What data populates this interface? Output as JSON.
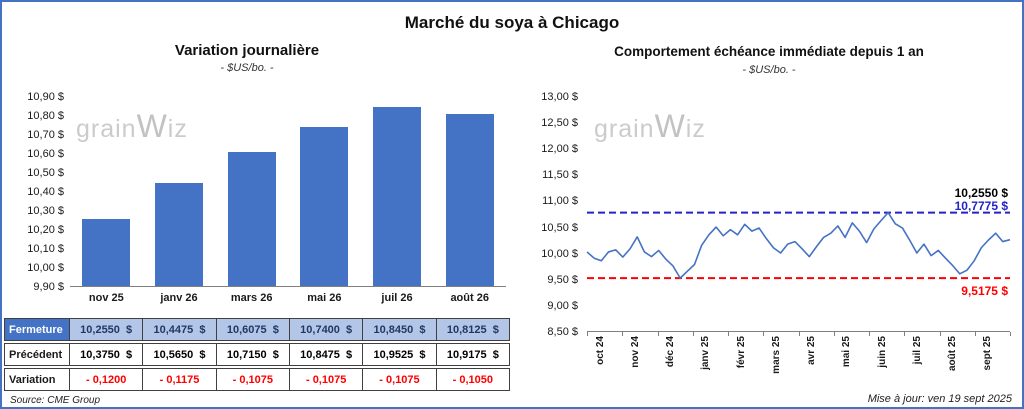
{
  "page": {
    "title": "Marché du soya à Chicago",
    "source": "Source: CME Group",
    "updated": "Mise à jour: ven 19 sept 2025",
    "watermark_pre": "grain",
    "watermark_mid": "W",
    "watermark_post": "iz",
    "accent_color": "#4472C4"
  },
  "chart_data": [
    {
      "type": "bar",
      "title": "Variation journalière",
      "subtitle": "- $US/bo. -",
      "categories": [
        "nov 25",
        "janv 26",
        "mars 26",
        "mai 26",
        "juil 26",
        "août 26"
      ],
      "values": [
        10.255,
        10.4475,
        10.6075,
        10.74,
        10.845,
        10.8125
      ],
      "ylim": [
        9.9,
        10.9
      ],
      "y_tick_labels": [
        "10,90 $",
        "10,80 $",
        "10,70 $",
        "10,60 $",
        "10,50 $",
        "10,40 $",
        "10,30 $",
        "10,20 $",
        "10,10 $",
        "10,00 $",
        "9,90 $"
      ],
      "bar_color": "#4472C4",
      "grid": false
    },
    {
      "type": "line",
      "title": "Comportement échéance immédiate depuis 1 an",
      "subtitle": "- $US/bo. -",
      "x_tick_labels": [
        "oct 24",
        "nov 24",
        "déc 24",
        "janv 25",
        "févr 25",
        "mars 25",
        "avr 25",
        "mai 25",
        "juin 25",
        "juil 25",
        "août 25",
        "sept 25"
      ],
      "ylim": [
        8.5,
        13.0
      ],
      "y_tick_labels": [
        "13,00 $",
        "12,50 $",
        "12,00 $",
        "11,50 $",
        "11,00 $",
        "10,50 $",
        "10,00 $",
        "9,50 $",
        "9,00 $",
        "8,50 $"
      ],
      "values": [
        10.02,
        9.9,
        9.85,
        10.02,
        10.06,
        9.92,
        10.08,
        10.31,
        10.02,
        9.93,
        10.05,
        9.88,
        9.75,
        9.5175,
        9.65,
        9.78,
        10.15,
        10.35,
        10.5,
        10.33,
        10.45,
        10.35,
        10.55,
        10.42,
        10.48,
        10.28,
        10.1,
        10.0,
        10.17,
        10.22,
        10.08,
        9.93,
        10.12,
        10.3,
        10.38,
        10.52,
        10.3,
        10.58,
        10.42,
        10.2,
        10.46,
        10.62,
        10.7775,
        10.56,
        10.48,
        10.25,
        10.0,
        10.17,
        9.95,
        10.05,
        9.9,
        9.76,
        9.6,
        9.67,
        9.85,
        10.1,
        10.25,
        10.38,
        10.22,
        10.255
      ],
      "line_color": "#4472C4",
      "grid": false,
      "annotations": {
        "last": {
          "label": "10,2550 $",
          "value": 10.255,
          "color": "#000000"
        },
        "high": {
          "label": "10,7775 $",
          "value": 10.7775,
          "color": "#2323C8",
          "style": "dashed"
        },
        "low": {
          "label": "9,5175 $",
          "value": 9.5175,
          "color": "#FF0000",
          "style": "dashed"
        }
      }
    }
  ],
  "table": {
    "rows": [
      {
        "label": "Fermeture",
        "style": "fermeture",
        "values": [
          "10,2550  $",
          "10,4475  $",
          "10,6075  $",
          "10,7400  $",
          "10,8450  $",
          "10,8125  $"
        ]
      },
      {
        "label": "Précédent",
        "style": "precedent",
        "values": [
          "10,3750  $",
          "10,5650  $",
          "10,7150  $",
          "10,8475  $",
          "10,9525  $",
          "10,9175  $"
        ]
      },
      {
        "label": "Variation",
        "style": "variation",
        "values": [
          "- 0,1200",
          "- 0,1175",
          "- 0,1075",
          "- 0,1075",
          "- 0,1075",
          "- 0,1050"
        ]
      }
    ]
  }
}
